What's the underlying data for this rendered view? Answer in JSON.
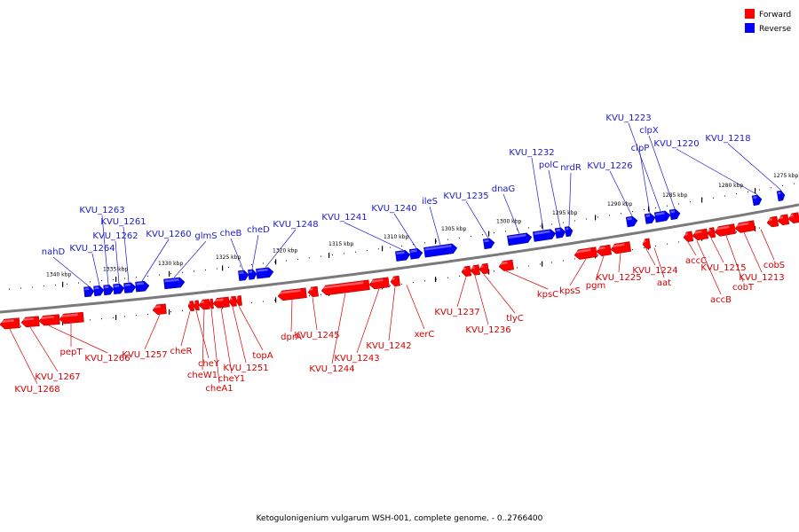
{
  "legend": [
    {
      "label": "Forward",
      "color": "#ff0000"
    },
    {
      "label": "Reverse",
      "color": "#0000ff"
    }
  ],
  "caption": "Ketogulonigenium vulgarum WSH-001, complete genome. - 0..2766400",
  "colors": {
    "forward": "#ff0000",
    "reverse": "#0000ff",
    "forward_label": "#d40000",
    "reverse_label": "#1a1acc",
    "backbone": "#7a7a7a"
  },
  "ticks": [
    "1340 kbp",
    "1335 kbp",
    "1330 kbp",
    "1325 kbp",
    "1320 kbp",
    "1315 kbp",
    "1310 kbp",
    "1305 kbp",
    "1300 kbp",
    "1295 kbp",
    "1290 kbp",
    "1285 kbp",
    "1280 kbp",
    "1275 kbp"
  ],
  "forward_labels": [
    "KVU_1268",
    "KVU_1267",
    "KVU_1266",
    "pepT",
    "KVU_1257",
    "cheR",
    "cheY",
    "cheW1",
    "cheA1",
    "cheY1",
    "KVU_1251",
    "topA",
    "dprA",
    "KVU_1245",
    "KVU_1244",
    "KVU_1243",
    "KVU_1242",
    "xerC",
    "KVU_1237",
    "KVU_1236",
    "tlyC",
    "kpsC",
    "kpsS",
    "pgm",
    "KVU_1225",
    "KVU_1224",
    "aat",
    "accC",
    "accB",
    "KVU_1215",
    "cobT",
    "KVU_1213",
    "cobS"
  ],
  "reverse_labels": [
    "nahD",
    "KVU_1264",
    "KVU_1263",
    "KVU_1262",
    "KVU_1261",
    "KVU_1260",
    "glmS",
    "cheB",
    "cheD",
    "KVU_1248",
    "KVU_1241",
    "KVU_1240",
    "ileS",
    "KVU_1235",
    "dnaG",
    "KVU_1232",
    "polC",
    "nrdR",
    "KVU_1226",
    "clpP",
    "KVU_1223",
    "clpX",
    "KVU_1220",
    "KVU_1218"
  ]
}
